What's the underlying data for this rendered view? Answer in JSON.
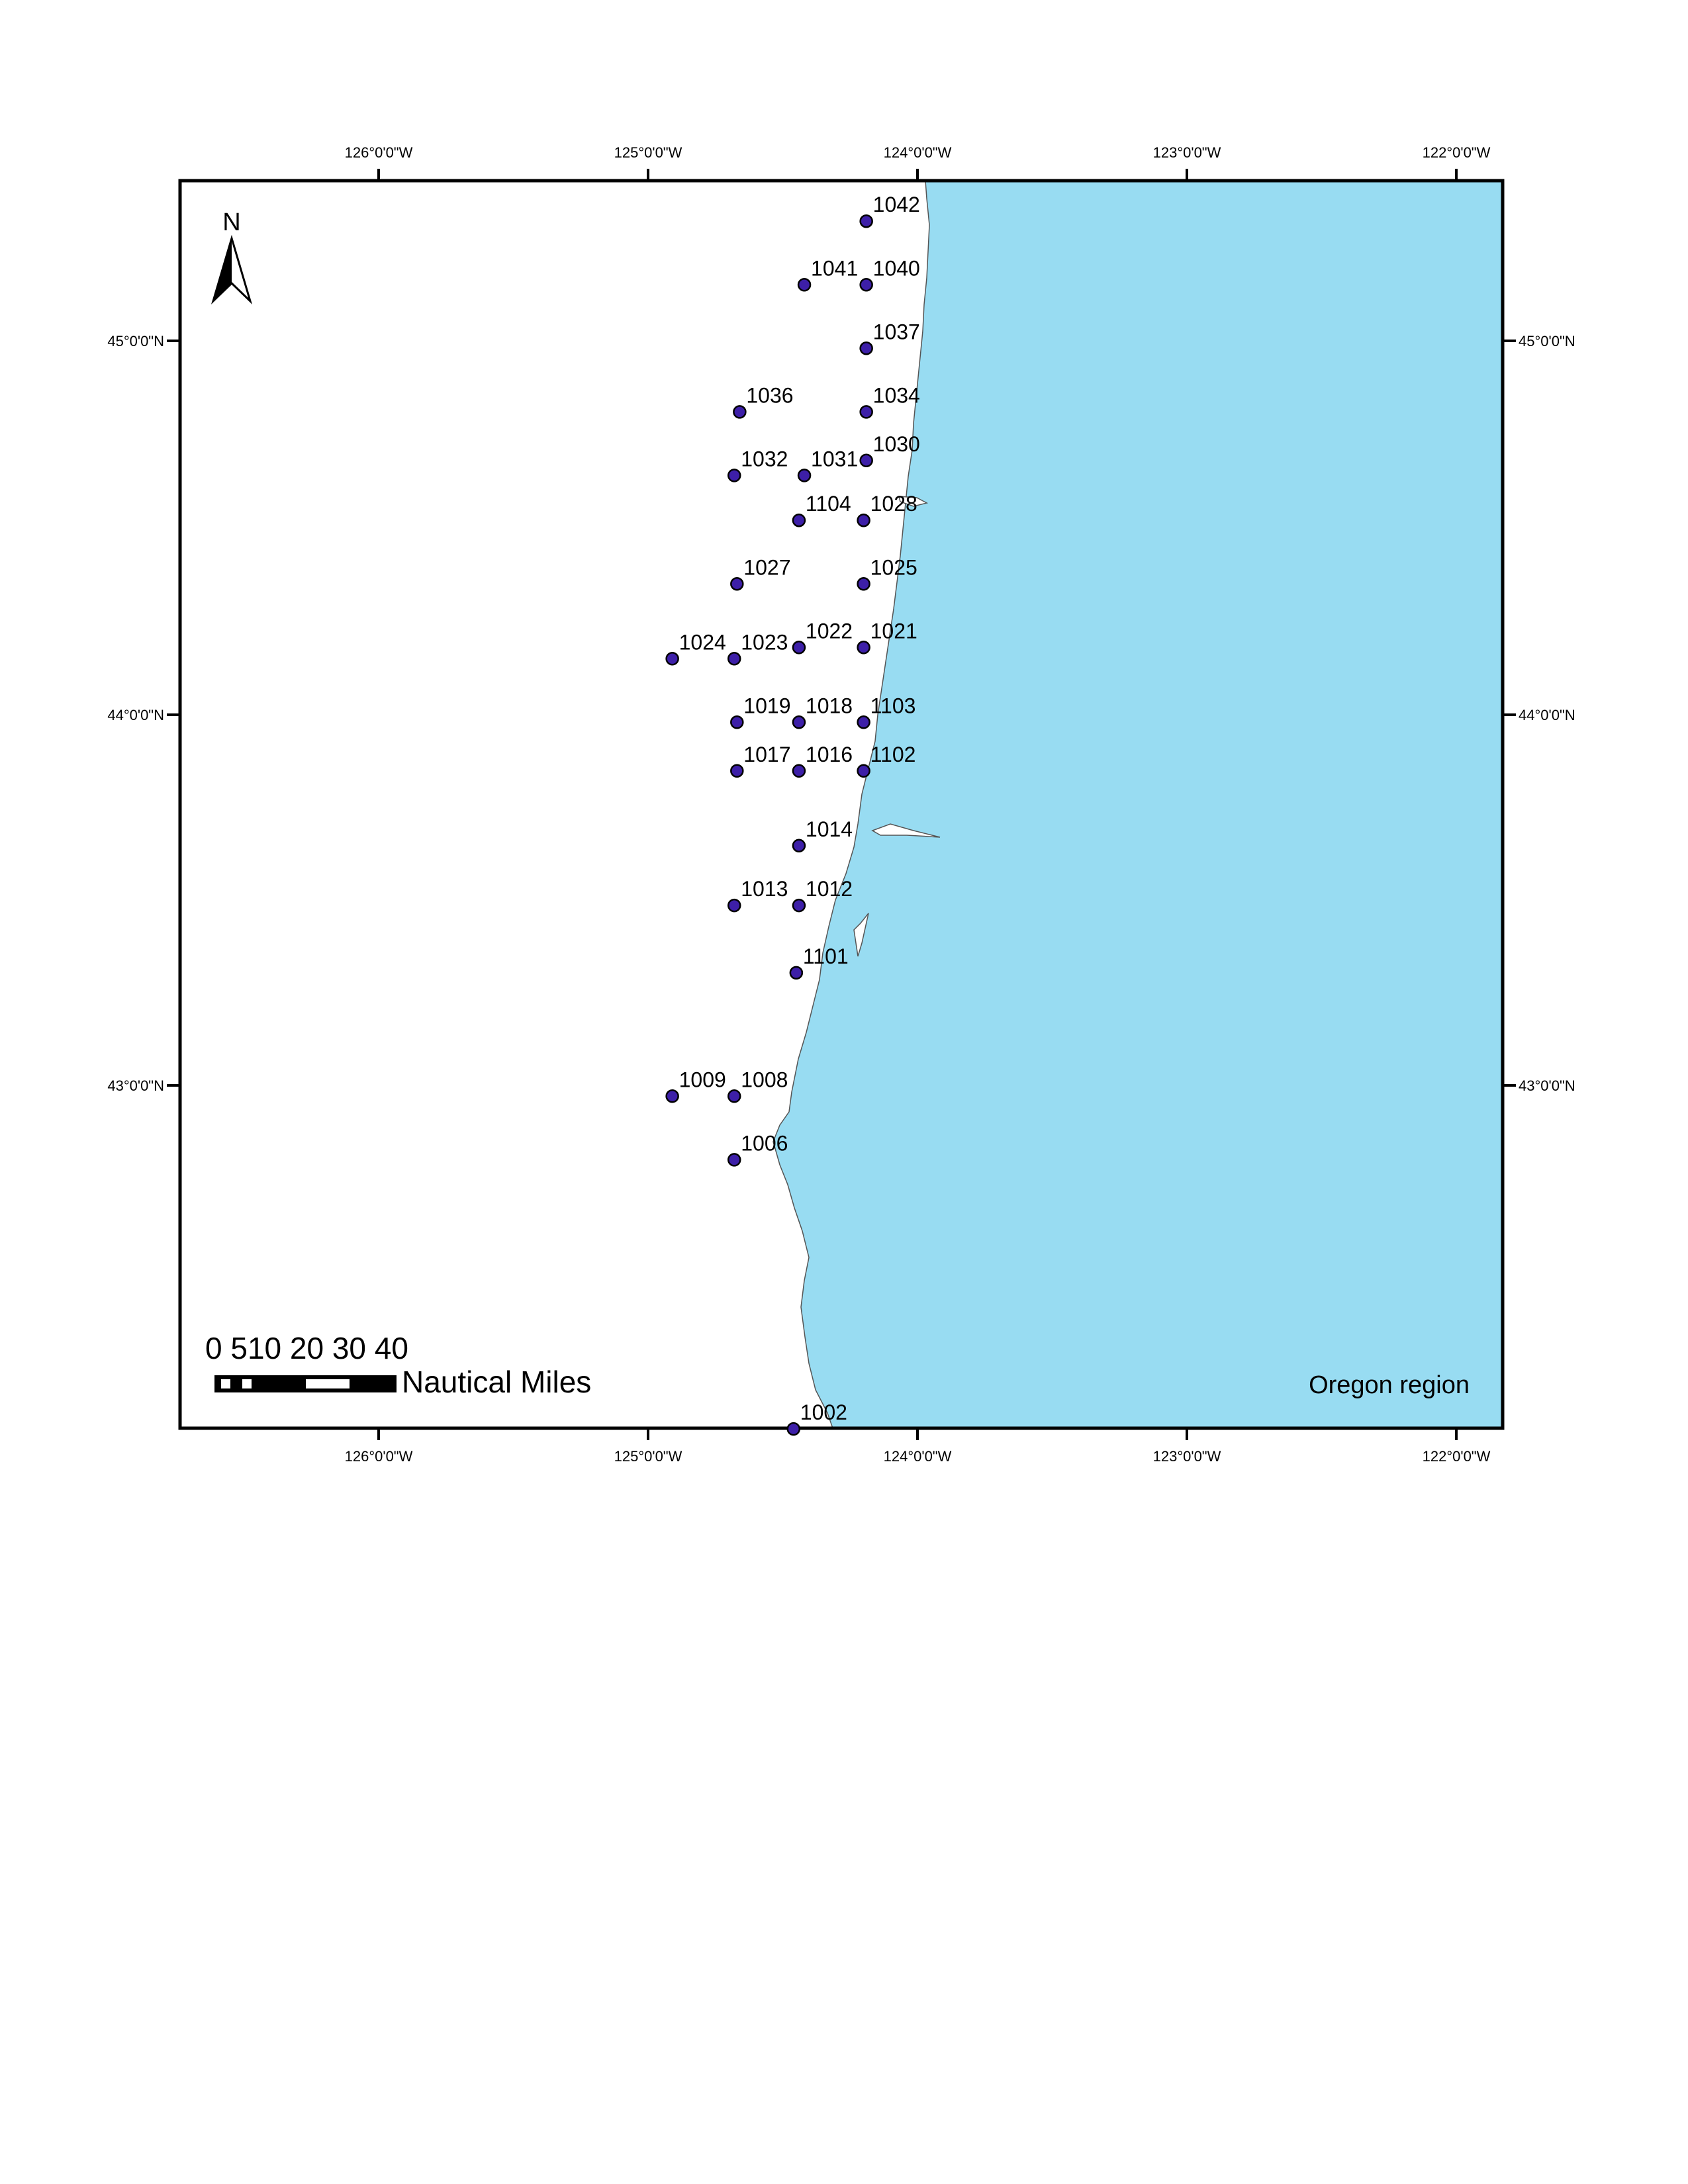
{
  "map": {
    "region_label": "Oregon region",
    "north_label": "N",
    "land_color": "#98dcf2",
    "point_color": "#3d1fa8",
    "lon_ticks": [
      "126°0'0\"W",
      "125°0'0\"W",
      "124°0'0\"W",
      "123°0'0\"W",
      "122°0'0\"W"
    ],
    "lat_ticks": [
      "45°0'0\"N",
      "44°0'0\"N",
      "43°0'0\"N"
    ],
    "scale_bar": {
      "numbers": "0 510 20 30 40",
      "units": "Nautical Miles"
    },
    "stations": [
      {
        "id": "1042",
        "lon": -124.19,
        "lat": 45.32
      },
      {
        "id": "1041",
        "lon": -124.42,
        "lat": 45.15
      },
      {
        "id": "1040",
        "lon": -124.19,
        "lat": 45.15
      },
      {
        "id": "1037",
        "lon": -124.19,
        "lat": 44.98
      },
      {
        "id": "1036",
        "lon": -124.66,
        "lat": 44.81
      },
      {
        "id": "1034",
        "lon": -124.19,
        "lat": 44.81
      },
      {
        "id": "1032",
        "lon": -124.68,
        "lat": 44.64
      },
      {
        "id": "1031",
        "lon": -124.42,
        "lat": 44.64
      },
      {
        "id": "1030",
        "lon": -124.19,
        "lat": 44.68
      },
      {
        "id": "1104",
        "lon": -124.44,
        "lat": 44.52
      },
      {
        "id": "1028",
        "lon": -124.2,
        "lat": 44.52
      },
      {
        "id": "1027",
        "lon": -124.67,
        "lat": 44.35
      },
      {
        "id": "1025",
        "lon": -124.2,
        "lat": 44.35
      },
      {
        "id": "1024",
        "lon": -124.91,
        "lat": 44.15
      },
      {
        "id": "1023",
        "lon": -124.68,
        "lat": 44.15
      },
      {
        "id": "1022",
        "lon": -124.44,
        "lat": 44.18
      },
      {
        "id": "1021",
        "lon": -124.2,
        "lat": 44.18
      },
      {
        "id": "1019",
        "lon": -124.67,
        "lat": 43.98
      },
      {
        "id": "1018",
        "lon": -124.44,
        "lat": 43.98
      },
      {
        "id": "1103",
        "lon": -124.2,
        "lat": 43.98
      },
      {
        "id": "1017",
        "lon": -124.67,
        "lat": 43.85
      },
      {
        "id": "1016",
        "lon": -124.44,
        "lat": 43.85
      },
      {
        "id": "1102",
        "lon": -124.2,
        "lat": 43.85
      },
      {
        "id": "1014",
        "lon": -124.44,
        "lat": 43.65
      },
      {
        "id": "1013",
        "lon": -124.68,
        "lat": 43.49
      },
      {
        "id": "1012",
        "lon": -124.44,
        "lat": 43.49
      },
      {
        "id": "1101",
        "lon": -124.45,
        "lat": 43.31
      },
      {
        "id": "1009",
        "lon": -124.91,
        "lat": 42.98
      },
      {
        "id": "1008",
        "lon": -124.68,
        "lat": 42.98
      },
      {
        "id": "1006",
        "lon": -124.68,
        "lat": 42.81
      },
      {
        "id": "1002",
        "lon": -124.46,
        "lat": 42.09
      }
    ]
  }
}
